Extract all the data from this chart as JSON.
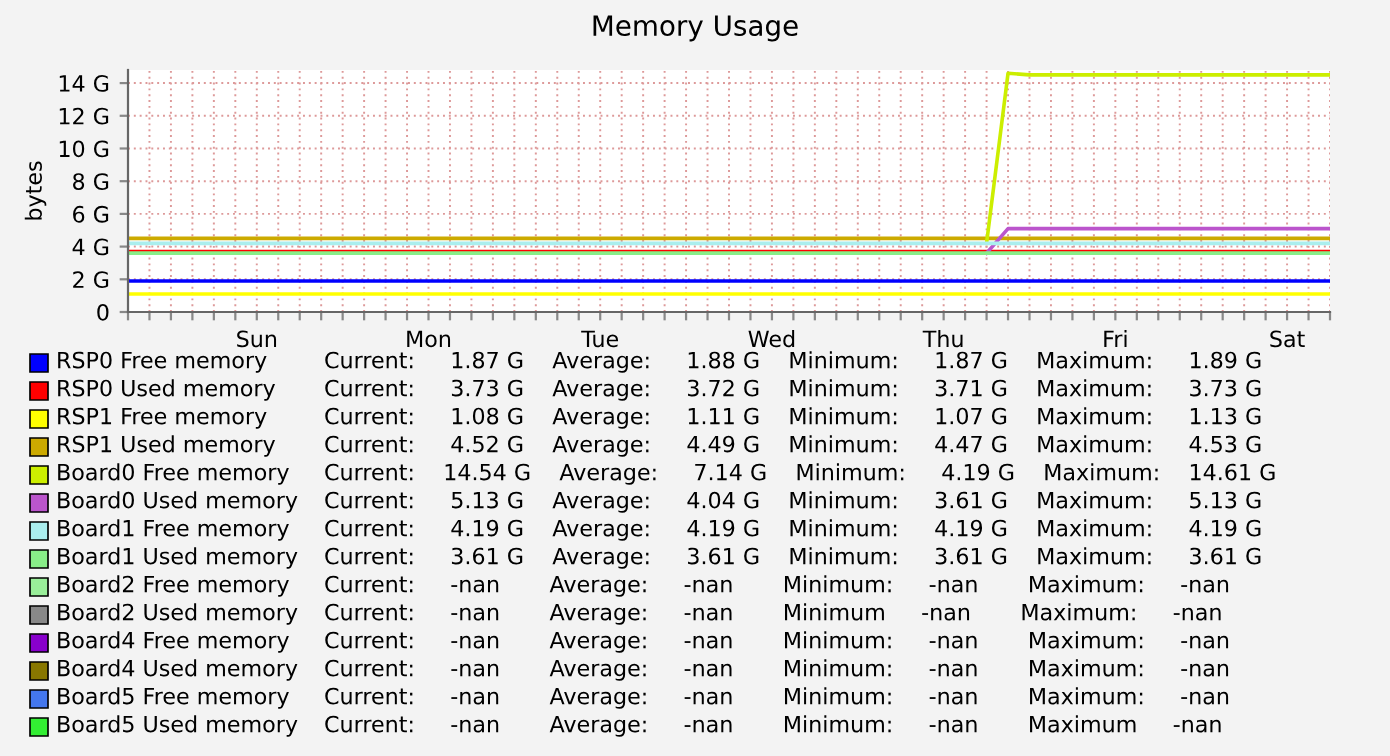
{
  "chart_data": {
    "type": "line",
    "title": "Memory Usage",
    "ylabel": "bytes",
    "categories": [
      null,
      null,
      null,
      null,
      null,
      null,
      "Sun",
      null,
      null,
      null,
      null,
      null,
      null,
      null,
      "Mon",
      null,
      null,
      null,
      null,
      null,
      null,
      null,
      "Tue",
      null,
      null,
      null,
      null,
      null,
      null,
      null,
      "Wed",
      null,
      null,
      null,
      null,
      null,
      null,
      null,
      "Thu",
      null,
      null,
      null,
      null,
      null,
      null,
      null,
      "Fri",
      null,
      null,
      null,
      null,
      null,
      null,
      null,
      "Sat",
      null,
      null
    ],
    "ylim": [
      0,
      14.8
    ],
    "yticks": [
      0,
      {
        "value": 2,
        "label": "2 G"
      },
      {
        "value": 4,
        "label": "4 G"
      },
      {
        "value": 6,
        "label": "6 G"
      },
      {
        "value": 8,
        "label": "8 G"
      },
      {
        "value": 10,
        "label": "10 G"
      },
      {
        "value": 12,
        "label": "12 G"
      },
      {
        "value": 14,
        "label": "14 G"
      }
    ],
    "grid": true,
    "legend": "bottom",
    "marker": "none",
    "line_style": "solid",
    "series": [
      {
        "name": "RSP0 Free memory",
        "color": "#0000ff",
        "values": [
          1.9,
          1.9,
          1.9,
          1.9,
          1.9,
          1.9,
          1.9,
          1.9,
          1.9,
          1.9,
          1.9,
          1.9,
          1.9,
          1.9,
          1.9,
          1.9,
          1.9,
          1.9,
          1.9,
          1.9,
          1.9,
          1.9,
          1.9,
          1.9,
          1.9,
          1.9,
          1.9,
          1.9,
          1.9,
          1.9,
          1.9,
          1.9,
          1.9,
          1.9,
          1.9,
          1.9,
          1.9,
          1.9,
          1.9,
          1.9,
          1.9,
          1.9,
          1.9,
          1.9,
          1.9,
          1.9,
          1.9,
          1.9,
          1.9,
          1.9,
          1.9,
          1.9,
          1.9,
          1.9,
          1.9,
          1.9,
          1.9
        ]
      },
      {
        "name": "RSP0 Used memory",
        "color": "#ff0000",
        "values": [
          3.7,
          3.7,
          3.7,
          3.7,
          3.7,
          3.7,
          3.7,
          3.7,
          3.7,
          3.7,
          3.7,
          3.7,
          3.7,
          3.7,
          3.7,
          3.7,
          3.7,
          3.7,
          3.7,
          3.7,
          3.7,
          3.7,
          3.7,
          3.7,
          3.7,
          3.7,
          3.7,
          3.7,
          3.7,
          3.7,
          3.7,
          3.7,
          3.7,
          3.7,
          3.7,
          3.7,
          3.7,
          3.7,
          3.7,
          3.7,
          3.7,
          3.7,
          3.7,
          3.7,
          3.7,
          3.7,
          3.7,
          3.7,
          3.7,
          3.7,
          3.7,
          3.7,
          3.7,
          3.7,
          3.7,
          3.7,
          3.7
        ]
      },
      {
        "name": "RSP1 Free memory",
        "color": "#ffff00",
        "values": [
          1.1,
          1.1,
          1.1,
          1.1,
          1.1,
          1.1,
          1.1,
          1.1,
          1.1,
          1.1,
          1.1,
          1.1,
          1.1,
          1.1,
          1.1,
          1.1,
          1.1,
          1.1,
          1.1,
          1.1,
          1.1,
          1.1,
          1.1,
          1.1,
          1.1,
          1.1,
          1.1,
          1.1,
          1.1,
          1.1,
          1.1,
          1.1,
          1.1,
          1.1,
          1.1,
          1.1,
          1.1,
          1.1,
          1.1,
          1.1,
          1.1,
          1.1,
          1.1,
          1.1,
          1.1,
          1.1,
          1.1,
          1.1,
          1.1,
          1.1,
          1.1,
          1.1,
          1.1,
          1.1,
          1.1,
          1.1,
          1.1
        ]
      },
      {
        "name": "RSP1 Used memory",
        "color": "#ccaa00",
        "values": [
          4.5,
          4.5,
          4.5,
          4.5,
          4.5,
          4.5,
          4.5,
          4.5,
          4.5,
          4.5,
          4.5,
          4.5,
          4.5,
          4.5,
          4.5,
          4.5,
          4.5,
          4.5,
          4.5,
          4.5,
          4.5,
          4.5,
          4.5,
          4.5,
          4.5,
          4.5,
          4.5,
          4.5,
          4.5,
          4.5,
          4.5,
          4.5,
          4.5,
          4.5,
          4.5,
          4.5,
          4.5,
          4.5,
          4.5,
          4.5,
          4.5,
          4.5,
          4.5,
          4.5,
          4.5,
          4.5,
          4.5,
          4.5,
          4.5,
          4.5,
          4.5,
          4.5,
          4.5,
          4.5,
          4.5,
          4.5,
          4.5
        ]
      },
      {
        "name": "Board0 Free memory",
        "color": "#ccee00",
        "values": [
          null,
          null,
          null,
          null,
          null,
          null,
          null,
          null,
          null,
          null,
          null,
          null,
          null,
          null,
          null,
          null,
          null,
          null,
          null,
          null,
          null,
          null,
          null,
          null,
          null,
          null,
          null,
          null,
          null,
          null,
          null,
          null,
          null,
          null,
          null,
          null,
          null,
          null,
          null,
          null,
          4.2,
          14.6,
          14.5,
          14.5,
          14.5,
          14.5,
          14.5,
          14.5,
          14.5,
          14.5,
          14.5,
          14.5,
          14.5,
          14.5,
          14.5,
          14.5,
          14.5
        ]
      },
      {
        "name": "Board0 Used memory",
        "color": "#bb55cc",
        "values": [
          null,
          null,
          null,
          null,
          null,
          null,
          null,
          null,
          null,
          null,
          null,
          null,
          null,
          null,
          null,
          null,
          null,
          null,
          null,
          null,
          null,
          null,
          null,
          null,
          null,
          null,
          null,
          null,
          null,
          null,
          null,
          null,
          null,
          null,
          null,
          null,
          null,
          null,
          null,
          null,
          3.6,
          5.1,
          5.1,
          5.1,
          5.1,
          5.1,
          5.1,
          5.1,
          5.1,
          5.1,
          5.1,
          5.1,
          5.1,
          5.1,
          5.1,
          5.1,
          5.1
        ]
      },
      {
        "name": "Board1 Free memory",
        "color": "#aaeeee",
        "values": [
          4.2,
          4.2,
          4.2,
          4.2,
          4.2,
          4.2,
          4.2,
          4.2,
          4.2,
          4.2,
          4.2,
          4.2,
          4.2,
          4.2,
          4.2,
          4.2,
          4.2,
          4.2,
          4.2,
          4.2,
          4.2,
          4.2,
          4.2,
          4.2,
          4.2,
          4.2,
          4.2,
          4.2,
          4.2,
          4.2,
          4.2,
          4.2,
          4.2,
          4.2,
          4.2,
          4.2,
          4.2,
          4.2,
          4.2,
          4.2,
          4.2,
          4.2,
          4.2,
          4.2,
          4.2,
          4.2,
          4.2,
          4.2,
          4.2,
          4.2,
          4.2,
          4.2,
          4.2,
          4.2,
          4.2,
          4.2,
          4.2
        ]
      },
      {
        "name": "Board1 Used memory",
        "color": "#88ee88",
        "values": [
          3.6,
          3.6,
          3.6,
          3.6,
          3.6,
          3.6,
          3.6,
          3.6,
          3.6,
          3.6,
          3.6,
          3.6,
          3.6,
          3.6,
          3.6,
          3.6,
          3.6,
          3.6,
          3.6,
          3.6,
          3.6,
          3.6,
          3.6,
          3.6,
          3.6,
          3.6,
          3.6,
          3.6,
          3.6,
          3.6,
          3.6,
          3.6,
          3.6,
          3.6,
          3.6,
          3.6,
          3.6,
          3.6,
          3.6,
          3.6,
          3.6,
          3.6,
          3.6,
          3.6,
          3.6,
          3.6,
          3.6,
          3.6,
          3.6,
          3.6,
          3.6,
          3.6,
          3.6,
          3.6,
          3.6,
          3.6,
          3.6
        ]
      },
      {
        "name": "Board2 Free memory",
        "color": "#99ee99",
        "values": [
          null,
          null,
          null,
          null,
          null,
          null,
          null,
          null,
          null,
          null,
          null,
          null,
          null,
          null,
          null,
          null,
          null,
          null,
          null,
          null,
          null,
          null,
          null,
          null,
          null,
          null,
          null,
          null,
          null,
          null,
          null,
          null,
          null,
          null,
          null,
          null,
          null,
          null,
          null,
          null,
          null,
          null,
          null,
          null,
          null,
          null,
          null,
          null,
          null,
          null,
          null,
          null,
          null,
          null,
          null,
          null,
          null
        ]
      },
      {
        "name": "Board2 Used memory",
        "color": "#888888",
        "values": [
          null,
          null,
          null,
          null,
          null,
          null,
          null,
          null,
          null,
          null,
          null,
          null,
          null,
          null,
          null,
          null,
          null,
          null,
          null,
          null,
          null,
          null,
          null,
          null,
          null,
          null,
          null,
          null,
          null,
          null,
          null,
          null,
          null,
          null,
          null,
          null,
          null,
          null,
          null,
          null,
          null,
          null,
          null,
          null,
          null,
          null,
          null,
          null,
          null,
          null,
          null,
          null,
          null,
          null,
          null,
          null,
          null
        ]
      },
      {
        "name": "Board4 Free memory",
        "color": "#8800cc",
        "values": [
          null,
          null,
          null,
          null,
          null,
          null,
          null,
          null,
          null,
          null,
          null,
          null,
          null,
          null,
          null,
          null,
          null,
          null,
          null,
          null,
          null,
          null,
          null,
          null,
          null,
          null,
          null,
          null,
          null,
          null,
          null,
          null,
          null,
          null,
          null,
          null,
          null,
          null,
          null,
          null,
          null,
          null,
          null,
          null,
          null,
          null,
          null,
          null,
          null,
          null,
          null,
          null,
          null,
          null,
          null,
          null,
          null
        ]
      },
      {
        "name": "Board4 Used memory",
        "color": "#887700",
        "values": [
          null,
          null,
          null,
          null,
          null,
          null,
          null,
          null,
          null,
          null,
          null,
          null,
          null,
          null,
          null,
          null,
          null,
          null,
          null,
          null,
          null,
          null,
          null,
          null,
          null,
          null,
          null,
          null,
          null,
          null,
          null,
          null,
          null,
          null,
          null,
          null,
          null,
          null,
          null,
          null,
          null,
          null,
          null,
          null,
          null,
          null,
          null,
          null,
          null,
          null,
          null,
          null,
          null,
          null,
          null,
          null,
          null
        ]
      },
      {
        "name": "Board5 Free memory",
        "color": "#4477ee",
        "values": [
          null,
          null,
          null,
          null,
          null,
          null,
          null,
          null,
          null,
          null,
          null,
          null,
          null,
          null,
          null,
          null,
          null,
          null,
          null,
          null,
          null,
          null,
          null,
          null,
          null,
          null,
          null,
          null,
          null,
          null,
          null,
          null,
          null,
          null,
          null,
          null,
          null,
          null,
          null,
          null,
          null,
          null,
          null,
          null,
          null,
          null,
          null,
          null,
          null,
          null,
          null,
          null,
          null,
          null,
          null,
          null,
          null
        ]
      },
      {
        "name": "Board5 Used memory",
        "color": "#33ee33",
        "values": [
          null,
          null,
          null,
          null,
          null,
          null,
          null,
          null,
          null,
          null,
          null,
          null,
          null,
          null,
          null,
          null,
          null,
          null,
          null,
          null,
          null,
          null,
          null,
          null,
          null,
          null,
          null,
          null,
          null,
          null,
          null,
          null,
          null,
          null,
          null,
          null,
          null,
          null,
          null,
          null,
          null,
          null,
          null,
          null,
          null,
          null,
          null,
          null,
          null,
          null,
          null,
          null,
          null,
          null,
          null,
          null,
          null
        ]
      }
    ],
    "annotations": [
      "Current:     1.87 G    Average:     1.88 G    Minimum:     1.87 G    Maximum:     1.89 G",
      "Current:     3.73 G    Average:     3.72 G    Minimum:     3.71 G    Maximum:     3.73 G",
      "Current:     1.08 G    Average:     1.11 G    Minimum:     1.07 G    Maximum:     1.13 G",
      "Current:     4.52 G    Average:     4.49 G    Minimum:     4.47 G    Maximum:     4.53 G",
      "Current:    14.54 G    Average:     7.14 G    Minimum:     4.19 G    Maximum:    14.61 G",
      "Current:     5.13 G    Average:     4.04 G    Minimum:     3.61 G    Maximum:     5.13 G",
      "Current:     4.19 G    Average:     4.19 G    Minimum:     4.19 G    Maximum:     4.19 G",
      "Current:     3.61 G    Average:     3.61 G    Minimum:     3.61 G    Maximum:     3.61 G",
      "Current:     -nan       Average:     -nan       Minimum:     -nan       Maximum:     -nan",
      "Current:     -nan       Average:     -nan       Minimum     -nan       Maximum:     -nan",
      "Current:     -nan       Average:     -nan       Minimum:     -nan       Maximum:     -nan",
      "Current:     -nan       Average:     -nan       Minimum:     -nan       Maximum:     -nan",
      "Current:     -nan       Average:     -nan       Minimum:     -nan       Maximum:     -nan",
      "Current:     -nan       Average:     -nan       Minimum:     -nan       Maximum     -nan"
    ]
  }
}
